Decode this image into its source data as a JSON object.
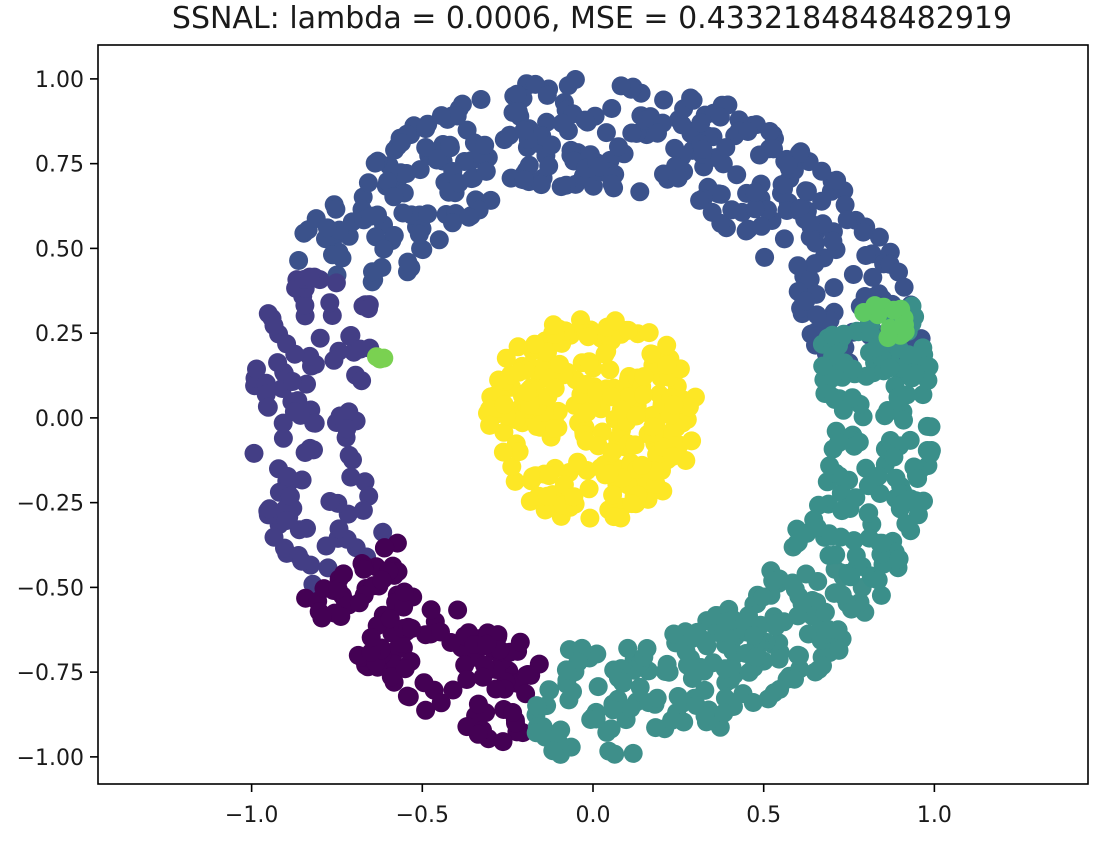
{
  "chart_data": {
    "type": "scatter",
    "title": "SSNAL: lambda = 0.0006, MSE = 0.4332184848482919",
    "xlabel": "",
    "ylabel": "",
    "xlim": [
      -1.45,
      1.45
    ],
    "ylim": [
      -1.08,
      1.1
    ],
    "x_ticks": [
      -1.0,
      -0.5,
      0.0,
      0.5,
      1.0
    ],
    "x_tick_labels": [
      "−1.0",
      "−0.5",
      "0.0",
      "0.5",
      "1.0"
    ],
    "y_ticks": [
      1.0,
      0.75,
      0.5,
      0.25,
      0.0,
      -0.25,
      -0.5,
      -0.75,
      -1.0
    ],
    "y_tick_labels": [
      "1.00",
      "0.75",
      "0.50",
      "0.25",
      "0.00",
      "−0.25",
      "−0.50",
      "−0.75",
      "−1.00"
    ],
    "grid": false,
    "legend": "none",
    "marker": "filled circle",
    "colormap": "viridis",
    "dataset": "two concentric circles (inner disk radius about 0.3, outer ring radius about 0.7 to 1.0)",
    "clusters": [
      {
        "color": "#fde725",
        "shape": "disk",
        "center": [
          0.0,
          0.0
        ],
        "r_min": 0.0,
        "r_max": 0.31,
        "angle_deg": [
          0,
          360
        ],
        "count": 260
      },
      {
        "color": "#3b528b",
        "shape": "ring",
        "center": [
          0.0,
          0.0
        ],
        "r_min": 0.68,
        "r_max": 1.01,
        "angle_deg": [
          12,
          152
        ],
        "count": 360
      },
      {
        "color": "#433e85",
        "shape": "ring",
        "center": [
          0.0,
          0.0
        ],
        "r_min": 0.68,
        "r_max": 1.0,
        "angle_deg": [
          152,
          212
        ],
        "count": 110
      },
      {
        "color": "#440154",
        "shape": "ring",
        "center": [
          0.0,
          0.0
        ],
        "r_min": 0.68,
        "r_max": 1.0,
        "angle_deg": [
          212,
          258
        ],
        "count": 130
      },
      {
        "color": "#3e8f8a",
        "shape": "ring",
        "center": [
          0.0,
          0.0
        ],
        "r_min": 0.68,
        "r_max": 1.0,
        "angle_deg": [
          -102,
          -32
        ],
        "count": 200
      },
      {
        "color": "#3a8f8a",
        "shape": "ring",
        "center": [
          0.0,
          0.0
        ],
        "r_min": 0.68,
        "r_max": 1.0,
        "angle_deg": [
          -32,
          20
        ],
        "count": 170
      },
      {
        "color": "#5ec962",
        "shape": "ring",
        "center": [
          0.0,
          0.0
        ],
        "r_min": 0.84,
        "r_max": 0.96,
        "angle_deg": [
          14,
          24
        ],
        "count": 14
      },
      {
        "color": "#7ad151",
        "shape": "blob",
        "center": [
          -0.63,
          0.17
        ],
        "r_min": 0.0,
        "r_max": 0.02,
        "angle_deg": [
          0,
          360
        ],
        "count": 3
      }
    ]
  }
}
